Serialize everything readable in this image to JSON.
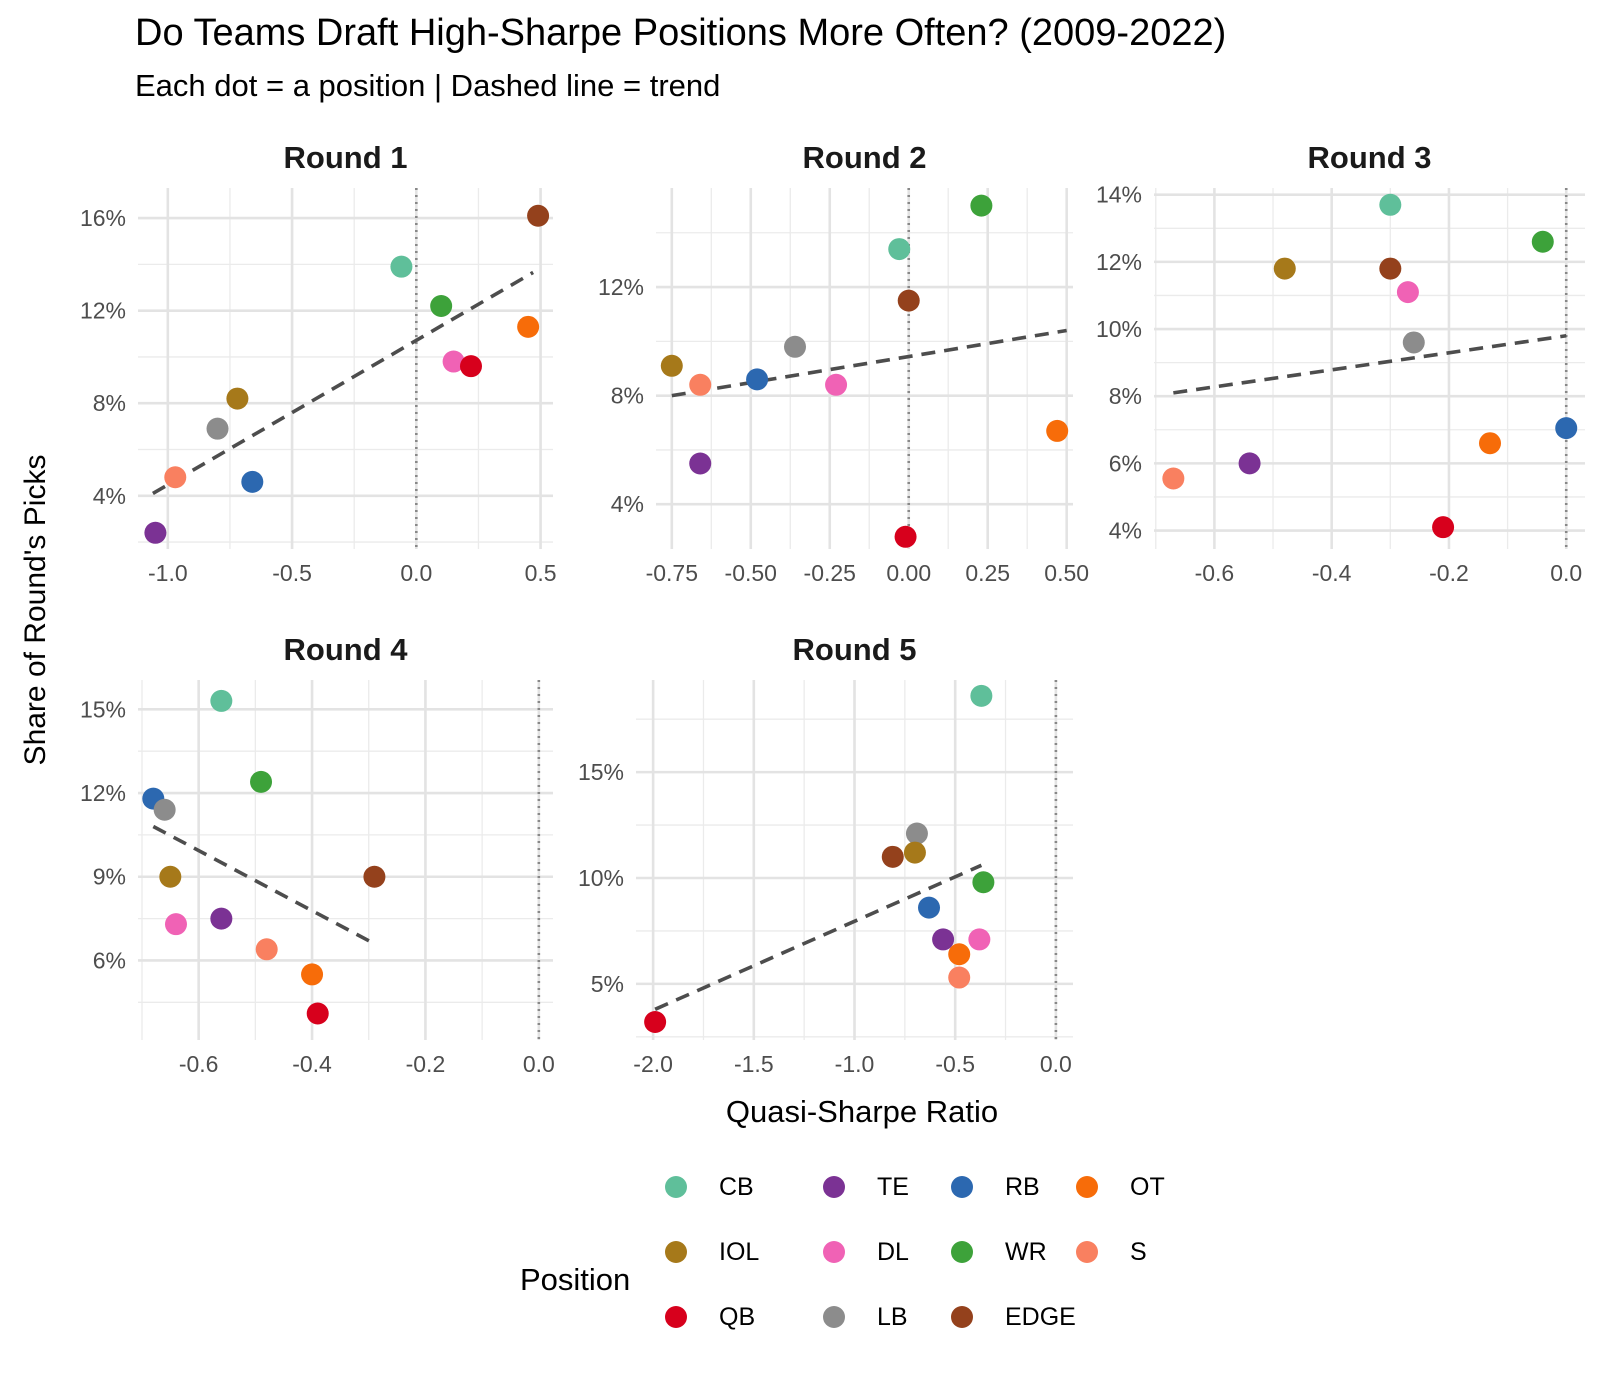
{
  "title": "Do Teams Draft High-Sharpe Positions More Often? (2009-2022)",
  "subtitle": "Each dot = a position | Dashed line = trend",
  "x_axis_label": "Quasi-Sharpe Ratio",
  "y_axis_label": "Share of Round's Picks",
  "legend": {
    "title": "Position",
    "items": [
      {
        "label": "CB",
        "color": "#5fbf9a"
      },
      {
        "label": "IOL",
        "color": "#a6791a"
      },
      {
        "label": "QB",
        "color": "#d7001c"
      },
      {
        "label": "TE",
        "color": "#7b3294"
      },
      {
        "label": "DL",
        "color": "#f062b5"
      },
      {
        "label": "LB",
        "color": "#8c8c8c"
      },
      {
        "label": "RB",
        "color": "#2c68b0"
      },
      {
        "label": "WR",
        "color": "#3da23a"
      },
      {
        "label": "EDGE",
        "color": "#94411c"
      },
      {
        "label": "OT",
        "color": "#f76c09"
      },
      {
        "label": "S",
        "color": "#f98060"
      }
    ]
  },
  "chart_data": [
    {
      "type": "scatter",
      "title": "Round 1",
      "xlim": [
        -1.12,
        0.55
      ],
      "ylim": [
        0.017,
        0.173
      ],
      "xticks": [
        -1.0,
        -0.5,
        0.0,
        0.5
      ],
      "xtick_labels": [
        "-1.0",
        "-0.5",
        "0.0",
        "0.5"
      ],
      "yticks": [
        0.04,
        0.08,
        0.12,
        0.16
      ],
      "ytick_labels": [
        "4%",
        "8%",
        "12%",
        "16%"
      ],
      "trend": {
        "x": [
          -1.06,
          0.47
        ],
        "y": [
          0.041,
          0.1365
        ]
      },
      "reference_line_x": 0,
      "points": [
        {
          "position": "CB",
          "x": -0.06,
          "y": 0.139
        },
        {
          "position": "EDGE",
          "x": 0.49,
          "y": 0.161
        },
        {
          "position": "WR",
          "x": 0.1,
          "y": 0.122
        },
        {
          "position": "OT",
          "x": 0.45,
          "y": 0.113
        },
        {
          "position": "DL",
          "x": 0.15,
          "y": 0.098
        },
        {
          "position": "QB",
          "x": 0.22,
          "y": 0.096
        },
        {
          "position": "IOL",
          "x": -0.72,
          "y": 0.082
        },
        {
          "position": "LB",
          "x": -0.8,
          "y": 0.069
        },
        {
          "position": "S",
          "x": -0.97,
          "y": 0.048
        },
        {
          "position": "RB",
          "x": -0.66,
          "y": 0.046
        },
        {
          "position": "TE",
          "x": -1.05,
          "y": 0.024
        }
      ]
    },
    {
      "type": "scatter",
      "title": "Round 2",
      "xlim": [
        -0.8,
        0.52
      ],
      "ylim": [
        0.0235,
        0.1565
      ],
      "xticks": [
        -0.75,
        -0.5,
        -0.25,
        0.0,
        0.25,
        0.5
      ],
      "xtick_labels": [
        "-0.75",
        "-0.50",
        "-0.25",
        "0.00",
        "0.25",
        "0.50"
      ],
      "yticks": [
        0.04,
        0.08,
        0.12
      ],
      "ytick_labels": [
        "4%",
        "8%",
        "12%"
      ],
      "trend": {
        "x": [
          -0.75,
          0.5
        ],
        "y": [
          0.08,
          0.104
        ]
      },
      "reference_line_x": 0,
      "points": [
        {
          "position": "WR",
          "x": 0.23,
          "y": 0.15
        },
        {
          "position": "CB",
          "x": -0.03,
          "y": 0.134
        },
        {
          "position": "EDGE",
          "x": 0.0,
          "y": 0.115
        },
        {
          "position": "LB",
          "x": -0.36,
          "y": 0.098
        },
        {
          "position": "IOL",
          "x": -0.75,
          "y": 0.091
        },
        {
          "position": "RB",
          "x": -0.48,
          "y": 0.086
        },
        {
          "position": "S",
          "x": -0.66,
          "y": 0.084
        },
        {
          "position": "DL",
          "x": -0.23,
          "y": 0.084
        },
        {
          "position": "OT",
          "x": 0.47,
          "y": 0.067
        },
        {
          "position": "TE",
          "x": -0.66,
          "y": 0.055
        },
        {
          "position": "QB",
          "x": -0.01,
          "y": 0.028
        }
      ]
    },
    {
      "type": "scatter",
      "title": "Round 3",
      "xlim": [
        -0.703,
        0.032
      ],
      "ylim": [
        0.0345,
        0.142
      ],
      "xticks": [
        -0.6,
        -0.4,
        -0.2,
        0.0
      ],
      "xtick_labels": [
        "-0.6",
        "-0.4",
        "-0.2",
        "0.0"
      ],
      "yticks": [
        0.04,
        0.06,
        0.08,
        0.1,
        0.12,
        0.14
      ],
      "ytick_labels": [
        "4%",
        "6%",
        "8%",
        "10%",
        "12%",
        "14%"
      ],
      "trend": {
        "x": [
          -0.67,
          0.0
        ],
        "y": [
          0.081,
          0.098
        ]
      },
      "reference_line_x": 0,
      "points": [
        {
          "position": "CB",
          "x": -0.3,
          "y": 0.137
        },
        {
          "position": "WR",
          "x": -0.04,
          "y": 0.126
        },
        {
          "position": "IOL",
          "x": -0.48,
          "y": 0.118
        },
        {
          "position": "EDGE",
          "x": -0.3,
          "y": 0.118
        },
        {
          "position": "DL",
          "x": -0.27,
          "y": 0.111
        },
        {
          "position": "LB",
          "x": -0.26,
          "y": 0.096
        },
        {
          "position": "RB",
          "x": 0.0,
          "y": 0.0705
        },
        {
          "position": "OT",
          "x": -0.13,
          "y": 0.066
        },
        {
          "position": "TE",
          "x": -0.54,
          "y": 0.06
        },
        {
          "position": "S",
          "x": -0.67,
          "y": 0.0555
        },
        {
          "position": "QB",
          "x": -0.21,
          "y": 0.041
        }
      ]
    },
    {
      "type": "scatter",
      "title": "Round 4",
      "xlim": [
        -0.707,
        0.025
      ],
      "ylim": [
        0.0315,
        0.1605
      ],
      "xticks": [
        -0.6,
        -0.4,
        -0.2,
        0.0
      ],
      "xtick_labels": [
        "-0.6",
        "-0.4",
        "-0.2",
        "0.0"
      ],
      "yticks": [
        0.06,
        0.09,
        0.12,
        0.15
      ],
      "ytick_labels": [
        "6%",
        "9%",
        "12%",
        "15%"
      ],
      "trend": {
        "x": [
          -0.68,
          -0.29
        ],
        "y": [
          0.108,
          0.066
        ]
      },
      "reference_line_x": 0,
      "points": [
        {
          "position": "CB",
          "x": -0.56,
          "y": 0.153
        },
        {
          "position": "WR",
          "x": -0.49,
          "y": 0.124
        },
        {
          "position": "RB",
          "x": -0.68,
          "y": 0.118
        },
        {
          "position": "LB",
          "x": -0.66,
          "y": 0.114
        },
        {
          "position": "IOL",
          "x": -0.65,
          "y": 0.09
        },
        {
          "position": "EDGE",
          "x": -0.29,
          "y": 0.09
        },
        {
          "position": "TE",
          "x": -0.56,
          "y": 0.075
        },
        {
          "position": "DL",
          "x": -0.64,
          "y": 0.073
        },
        {
          "position": "S",
          "x": -0.48,
          "y": 0.064
        },
        {
          "position": "OT",
          "x": -0.4,
          "y": 0.055
        },
        {
          "position": "QB",
          "x": -0.39,
          "y": 0.041
        }
      ]
    },
    {
      "type": "scatter",
      "title": "Round 5",
      "xlim": [
        -2.085,
        0.085
      ],
      "ylim": [
        0.0235,
        0.1935
      ],
      "xticks": [
        -2.0,
        -1.5,
        -1.0,
        -0.5,
        0.0
      ],
      "xtick_labels": [
        "-2.0",
        "-1.5",
        "-1.0",
        "-0.5",
        "0.0"
      ],
      "yticks": [
        0.05,
        0.1,
        0.15
      ],
      "ytick_labels": [
        "5%",
        "10%",
        "15%"
      ],
      "trend": {
        "x": [
          -1.99,
          -0.37
        ],
        "y": [
          0.038,
          0.106
        ]
      },
      "reference_line_x": 0,
      "points": [
        {
          "position": "CB",
          "x": -0.37,
          "y": 0.186
        },
        {
          "position": "LB",
          "x": -0.69,
          "y": 0.121
        },
        {
          "position": "IOL",
          "x": -0.7,
          "y": 0.112
        },
        {
          "position": "EDGE",
          "x": -0.81,
          "y": 0.11
        },
        {
          "position": "WR",
          "x": -0.36,
          "y": 0.098
        },
        {
          "position": "RB",
          "x": -0.63,
          "y": 0.086
        },
        {
          "position": "TE",
          "x": -0.56,
          "y": 0.071
        },
        {
          "position": "DL",
          "x": -0.38,
          "y": 0.071
        },
        {
          "position": "OT",
          "x": -0.48,
          "y": 0.064
        },
        {
          "position": "S",
          "x": -0.48,
          "y": 0.053
        },
        {
          "position": "QB",
          "x": -1.99,
          "y": 0.032
        }
      ]
    }
  ]
}
